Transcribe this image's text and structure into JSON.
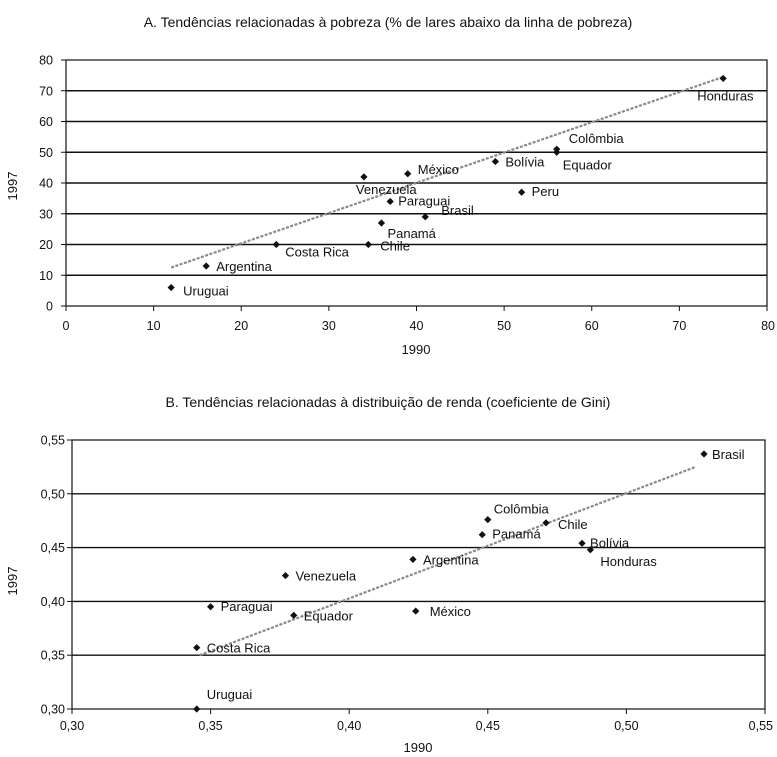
{
  "chart_data": [
    {
      "id": "A",
      "type": "scatter",
      "title": "A. Tendências relacionadas à pobreza (% de lares abaixo da linha de pobreza)",
      "xlabel": "1990",
      "ylabel": "1997",
      "xlim": [
        0,
        80
      ],
      "ylim": [
        0,
        80
      ],
      "xticks": [
        "0",
        "10",
        "20",
        "30",
        "40",
        "50",
        "60",
        "70",
        "80"
      ],
      "yticks": [
        "0",
        "10",
        "20",
        "30",
        "40",
        "50",
        "60",
        "70",
        "80"
      ],
      "grid": "horizontal",
      "trendline": [
        [
          12,
          12.5
        ],
        [
          75,
          74.5
        ]
      ],
      "points": [
        {
          "label": "Honduras",
          "x": 75,
          "y": 74
        },
        {
          "label": "Colômbia",
          "x": 56,
          "y": 51
        },
        {
          "label": "Equador",
          "x": 56,
          "y": 50
        },
        {
          "label": "Bolívia",
          "x": 49,
          "y": 47
        },
        {
          "label": "Peru",
          "x": 52,
          "y": 37
        },
        {
          "label": "México",
          "x": 39,
          "y": 43
        },
        {
          "label": "Venezuela",
          "x": 34,
          "y": 42
        },
        {
          "label": "Paraguai",
          "x": 37,
          "y": 34
        },
        {
          "label": "Brasil",
          "x": 41,
          "y": 29
        },
        {
          "label": "Panamá",
          "x": 36,
          "y": 27
        },
        {
          "label": "Costa Rica",
          "x": 24,
          "y": 20
        },
        {
          "label": "Chile",
          "x": 34.5,
          "y": 20
        },
        {
          "label": "Argentina",
          "x": 16,
          "y": 13
        },
        {
          "label": "Uruguai",
          "x": 12,
          "y": 6
        }
      ]
    },
    {
      "id": "B",
      "type": "scatter",
      "title": "B. Tendências relacionadas à distribuição de renda (coeficiente de Gini)",
      "xlabel": "1990",
      "ylabel": "1997",
      "xlim": [
        0.3,
        0.55
      ],
      "ylim": [
        0.3,
        0.55
      ],
      "xticks": [
        "0,30",
        "0,35",
        "0,40",
        "0,45",
        "0,50",
        "0,55"
      ],
      "yticks": [
        "0,30",
        "0,35",
        "0,40",
        "0,45",
        "0,50",
        "0,55"
      ],
      "grid": "horizontal",
      "trendline": [
        [
          0.346,
          0.35
        ],
        [
          0.525,
          0.525
        ]
      ],
      "points": [
        {
          "label": "Brasil",
          "x": 0.528,
          "y": 0.537
        },
        {
          "label": "Colômbia",
          "x": 0.45,
          "y": 0.476
        },
        {
          "label": "Chile",
          "x": 0.471,
          "y": 0.473
        },
        {
          "label": "Panamá",
          "x": 0.448,
          "y": 0.462
        },
        {
          "label": "Bolívia",
          "x": 0.484,
          "y": 0.454
        },
        {
          "label": "Honduras",
          "x": 0.487,
          "y": 0.448
        },
        {
          "label": "Argentina",
          "x": 0.423,
          "y": 0.439
        },
        {
          "label": "Venezuela",
          "x": 0.377,
          "y": 0.424
        },
        {
          "label": "Paraguai",
          "x": 0.35,
          "y": 0.395
        },
        {
          "label": "Equador",
          "x": 0.38,
          "y": 0.387
        },
        {
          "label": "México",
          "x": 0.424,
          "y": 0.391
        },
        {
          "label": "Costa Rica",
          "x": 0.345,
          "y": 0.357
        },
        {
          "label": "Uruguai",
          "x": 0.345,
          "y": 0.3
        }
      ]
    }
  ]
}
